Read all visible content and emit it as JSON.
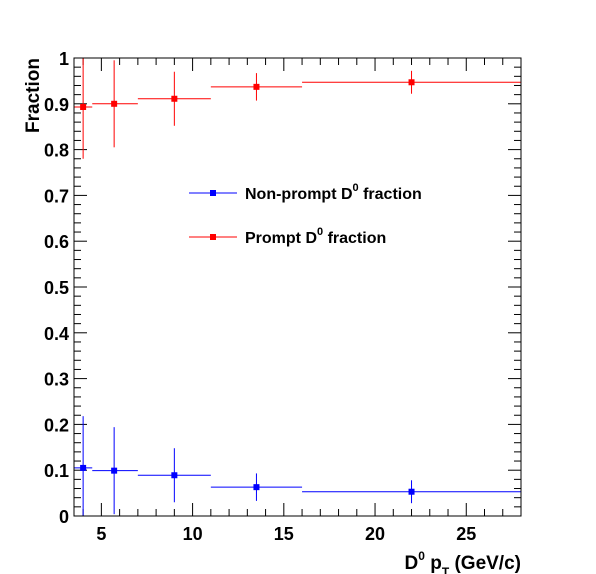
{
  "chart_data": {
    "type": "scatter",
    "title": "",
    "xlabel": {
      "main": "D",
      "sup": "0",
      "mid": " p",
      "sub": "T",
      "tail": " (GeV/c)"
    },
    "ylabel": "Fraction",
    "xlim": [
      3.5,
      28
    ],
    "ylim": [
      0,
      1
    ],
    "xticks": [
      5,
      10,
      15,
      20,
      25
    ],
    "yticks": [
      0,
      0.1,
      0.2,
      0.3,
      0.4,
      0.5,
      0.6,
      0.7,
      0.8,
      0.9,
      1
    ],
    "ytick_labels": [
      "0",
      "0.1",
      "0.2",
      "0.3",
      "0.4",
      "0.5",
      "0.6",
      "0.7",
      "0.8",
      "0.9",
      "1"
    ],
    "legend_position": "center",
    "series": [
      {
        "name": {
          "main": "Non-prompt D",
          "sup": "0",
          "tail": " fraction"
        },
        "color": "#0000ff",
        "points": [
          {
            "x": 4.0,
            "xlo": 3.5,
            "xhi": 4.5,
            "y": 0.105,
            "yerr": 0.113
          },
          {
            "x": 5.7,
            "xlo": 4.5,
            "xhi": 7.0,
            "y": 0.099,
            "yerr": 0.095
          },
          {
            "x": 9.0,
            "xlo": 7.0,
            "xhi": 11.0,
            "y": 0.089,
            "yerr": 0.059
          },
          {
            "x": 13.5,
            "xlo": 11.0,
            "xhi": 16.0,
            "y": 0.063,
            "yerr": 0.03
          },
          {
            "x": 22.0,
            "xlo": 16.0,
            "xhi": 28.0,
            "y": 0.053,
            "yerr": 0.025
          }
        ]
      },
      {
        "name": {
          "main": "Prompt D",
          "sup": "0",
          "tail": " fraction"
        },
        "color": "#ff0000",
        "points": [
          {
            "x": 4.0,
            "xlo": 3.5,
            "xhi": 4.5,
            "y": 0.893,
            "yerr": 0.113
          },
          {
            "x": 5.7,
            "xlo": 4.5,
            "xhi": 7.0,
            "y": 0.9,
            "yerr": 0.095
          },
          {
            "x": 9.0,
            "xlo": 7.0,
            "xhi": 11.0,
            "y": 0.911,
            "yerr": 0.059
          },
          {
            "x": 13.5,
            "xlo": 11.0,
            "xhi": 16.0,
            "y": 0.937,
            "yerr": 0.03
          },
          {
            "x": 22.0,
            "xlo": 16.0,
            "xhi": 28.0,
            "y": 0.947,
            "yerr": 0.025
          }
        ]
      }
    ]
  }
}
